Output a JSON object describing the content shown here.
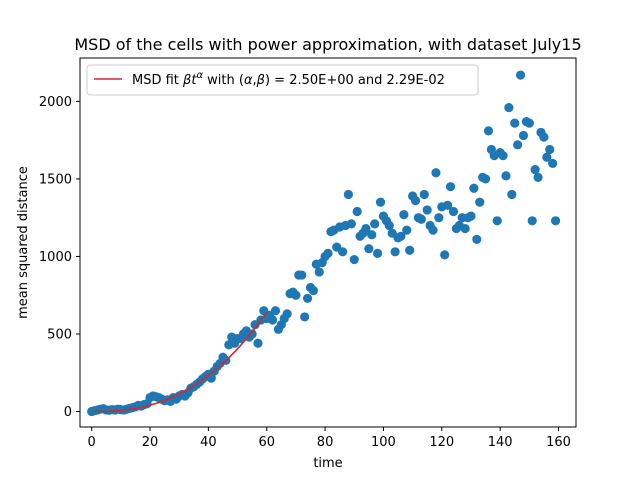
{
  "chart_data": {
    "type": "scatter",
    "title": "MSD of the cells with power approximation, with dataset July15",
    "xlabel": "time",
    "ylabel": "mean squared distance",
    "xlim": [
      -4,
      166
    ],
    "ylim": [
      -100,
      2280
    ],
    "xticks": [
      0,
      20,
      40,
      60,
      80,
      100,
      120,
      140,
      160
    ],
    "yticks": [
      0,
      500,
      1000,
      1500,
      2000
    ],
    "grid": false,
    "legend_position": "top-left",
    "legend_label": "MSD fit βt^α with (α,β) =  2.50E+00 and 2.29E-02",
    "legend_parts": {
      "pre": "MSD fit ",
      "beta": "β",
      "t": "t",
      "alpha_sup": "α",
      "mid": " with (",
      "alpha": "α",
      "comma": ",",
      "beta2": "β",
      "post": ") =  2.50E+00 and 2.29E-02"
    },
    "fit": {
      "alpha": 2.5,
      "beta": 0.0229,
      "x_range": [
        0,
        60
      ],
      "color": "#d62728"
    },
    "series": [
      {
        "color": "#1f77b4",
        "points": [
          [
            0,
            0
          ],
          [
            1,
            5
          ],
          [
            2,
            10
          ],
          [
            3,
            15
          ],
          [
            4,
            18
          ],
          [
            5,
            10
          ],
          [
            6,
            8
          ],
          [
            7,
            12
          ],
          [
            8,
            10
          ],
          [
            9,
            15
          ],
          [
            10,
            12
          ],
          [
            11,
            10
          ],
          [
            12,
            15
          ],
          [
            13,
            20
          ],
          [
            14,
            25
          ],
          [
            15,
            30
          ],
          [
            16,
            40
          ],
          [
            17,
            35
          ],
          [
            18,
            45
          ],
          [
            19,
            50
          ],
          [
            20,
            90
          ],
          [
            21,
            100
          ],
          [
            22,
            95
          ],
          [
            23,
            90
          ],
          [
            24,
            80
          ],
          [
            25,
            70
          ],
          [
            26,
            75
          ],
          [
            27,
            65
          ],
          [
            28,
            90
          ],
          [
            29,
            80
          ],
          [
            30,
            100
          ],
          [
            31,
            110
          ],
          [
            32,
            100
          ],
          [
            33,
            120
          ],
          [
            34,
            150
          ],
          [
            35,
            160
          ],
          [
            36,
            175
          ],
          [
            37,
            190
          ],
          [
            38,
            210
          ],
          [
            39,
            225
          ],
          [
            40,
            240
          ],
          [
            41,
            215
          ],
          [
            42,
            260
          ],
          [
            43,
            290
          ],
          [
            44,
            310
          ],
          [
            45,
            350
          ],
          [
            46,
            330
          ],
          [
            47,
            430
          ],
          [
            48,
            480
          ],
          [
            49,
            440
          ],
          [
            50,
            470
          ],
          [
            51,
            470
          ],
          [
            52,
            500
          ],
          [
            53,
            520
          ],
          [
            54,
            480
          ],
          [
            55,
            500
          ],
          [
            56,
            560
          ],
          [
            57,
            440
          ],
          [
            58,
            590
          ],
          [
            59,
            650
          ],
          [
            60,
            600
          ],
          [
            61,
            620
          ],
          [
            62,
            590
          ],
          [
            63,
            650
          ],
          [
            64,
            530
          ],
          [
            65,
            560
          ],
          [
            66,
            600
          ],
          [
            67,
            630
          ],
          [
            68,
            760
          ],
          [
            69,
            770
          ],
          [
            70,
            750
          ],
          [
            71,
            880
          ],
          [
            72,
            880
          ],
          [
            73,
            610
          ],
          [
            74,
            730
          ],
          [
            75,
            800
          ],
          [
            76,
            780
          ],
          [
            77,
            950
          ],
          [
            78,
            900
          ],
          [
            79,
            960
          ],
          [
            80,
            1000
          ],
          [
            81,
            1020
          ],
          [
            82,
            1160
          ],
          [
            83,
            1170
          ],
          [
            84,
            1060
          ],
          [
            85,
            1190
          ],
          [
            86,
            1030
          ],
          [
            87,
            1200
          ],
          [
            88,
            1400
          ],
          [
            89,
            1210
          ],
          [
            90,
            980
          ],
          [
            91,
            1290
          ],
          [
            92,
            1130
          ],
          [
            93,
            1150
          ],
          [
            94,
            1180
          ],
          [
            95,
            1050
          ],
          [
            96,
            1140
          ],
          [
            97,
            1210
          ],
          [
            98,
            1020
          ],
          [
            99,
            1350
          ],
          [
            100,
            1260
          ],
          [
            101,
            1230
          ],
          [
            102,
            1200
          ],
          [
            103,
            1150
          ],
          [
            104,
            1030
          ],
          [
            105,
            1120
          ],
          [
            106,
            1130
          ],
          [
            107,
            1270
          ],
          [
            108,
            1170
          ],
          [
            109,
            1040
          ],
          [
            110,
            1390
          ],
          [
            111,
            1360
          ],
          [
            112,
            1250
          ],
          [
            113,
            1240
          ],
          [
            114,
            1400
          ],
          [
            115,
            1300
          ],
          [
            116,
            1200
          ],
          [
            117,
            1170
          ],
          [
            118,
            1540
          ],
          [
            119,
            1250
          ],
          [
            120,
            1320
          ],
          [
            121,
            1010
          ],
          [
            122,
            1330
          ],
          [
            123,
            1450
          ],
          [
            124,
            1290
          ],
          [
            125,
            1180
          ],
          [
            126,
            1200
          ],
          [
            127,
            1250
          ],
          [
            128,
            1180
          ],
          [
            129,
            1250
          ],
          [
            130,
            1260
          ],
          [
            131,
            1440
          ],
          [
            132,
            1110
          ],
          [
            133,
            1350
          ],
          [
            134,
            1510
          ],
          [
            135,
            1500
          ],
          [
            136,
            1810
          ],
          [
            137,
            1690
          ],
          [
            138,
            1650
          ],
          [
            139,
            1230
          ],
          [
            140,
            1670
          ],
          [
            141,
            1650
          ],
          [
            142,
            1520
          ],
          [
            143,
            1960
          ],
          [
            144,
            1400
          ],
          [
            145,
            1860
          ],
          [
            146,
            1720
          ],
          [
            147,
            2170
          ],
          [
            148,
            1780
          ],
          [
            149,
            1870
          ],
          [
            150,
            1860
          ],
          [
            151,
            1230
          ],
          [
            152,
            1560
          ],
          [
            153,
            1510
          ],
          [
            154,
            1800
          ],
          [
            155,
            1770
          ],
          [
            156,
            1640
          ],
          [
            157,
            1690
          ],
          [
            158,
            1600
          ],
          [
            159,
            1230
          ]
        ]
      }
    ]
  }
}
